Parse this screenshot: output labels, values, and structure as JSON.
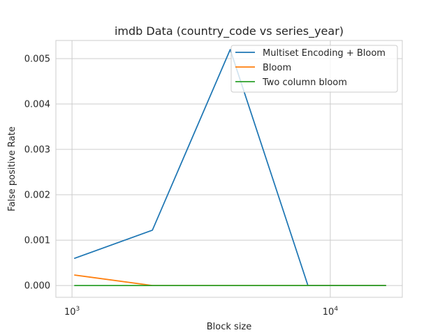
{
  "chart_data": {
    "type": "line",
    "title": "imdb Data (country_code vs series_year)",
    "xlabel": "Block size",
    "ylabel": "False positive Rate",
    "xscale": "log",
    "xlim": [
      866,
      19000
    ],
    "ylim": [
      -0.00026,
      0.0054
    ],
    "x": [
      1024,
      2048,
      4096,
      8192,
      16384
    ],
    "x_ticks": [
      {
        "value": 1000,
        "base": "10",
        "exp": "3"
      },
      {
        "value": 10000,
        "base": "10",
        "exp": "4"
      }
    ],
    "y_ticks": [
      {
        "value": 0.0,
        "label": "0.000"
      },
      {
        "value": 0.001,
        "label": "0.001"
      },
      {
        "value": 0.002,
        "label": "0.002"
      },
      {
        "value": 0.003,
        "label": "0.003"
      },
      {
        "value": 0.004,
        "label": "0.004"
      },
      {
        "value": 0.005,
        "label": "0.005"
      }
    ],
    "grid": true,
    "legend_position": "top-right",
    "series": [
      {
        "name": "Multiset Encoding + Bloom",
        "color": "#1f77b4",
        "values": [
          0.0006,
          0.00122,
          0.0052,
          0.0,
          0.0
        ]
      },
      {
        "name": "Bloom",
        "color": "#ff7f0e",
        "values": [
          0.00023,
          0.0,
          0.0,
          0.0,
          0.0
        ]
      },
      {
        "name": "Two column bloom",
        "color": "#2ca02c",
        "values": [
          0.0,
          0.0,
          0.0,
          0.0,
          0.0
        ]
      }
    ]
  }
}
